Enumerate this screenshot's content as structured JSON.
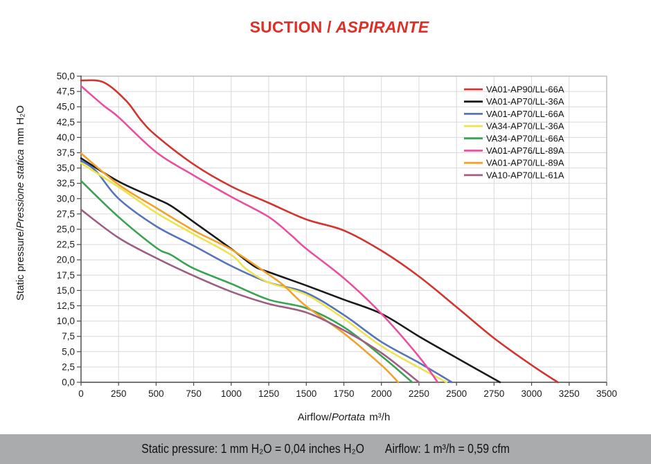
{
  "title": {
    "main": "SUCTION /",
    "italic": "ASPIRANTE",
    "color": "#e02f27"
  },
  "footer": {
    "pressure_note": "Static pressure: 1 mm H₂O = 0,04 inches H₂O",
    "airflow_note": "Airflow: 1 m³/h = 0,59 cfm",
    "bar_color": "#a9abad"
  },
  "chart_data": {
    "type": "line",
    "title": "SUCTION / ASPIRANTE",
    "xlabel_plain": "Airflow/",
    "xlabel_italic": "Portata",
    "xlabel_unit": "m³/h",
    "ylabel_plain": "Static pressure/",
    "ylabel_italic": "Pressione statica",
    "ylabel_unit": "mm H₂O",
    "xlim": [
      0,
      3500
    ],
    "ylim": [
      0,
      50
    ],
    "x_tick_step": 250,
    "y_tick_step": 2.5,
    "x_tick_labels": [
      "0",
      "250",
      "500",
      "750",
      "1000",
      "1250",
      "1500",
      "1750",
      "2000",
      "2250",
      "2500",
      "2750",
      "3000",
      "3250",
      "3500"
    ],
    "y_tick_labels": [
      "50,0",
      "47,5",
      "45,0",
      "42,5",
      "40,0",
      "37,5",
      "35,0",
      "32,5",
      "30,0",
      "27,5",
      "25,0",
      "22,5",
      "20,0",
      "17,5",
      "15,0",
      "12,5",
      "10,0",
      "7,5",
      "5,0",
      "2,5",
      "0,0"
    ],
    "grid": true,
    "gridline_color": "#d9d9d9",
    "border_color": "#aeaeae",
    "axis_color": "#4a4a4a",
    "legend_position": "top-right",
    "series": [
      {
        "name": "VA01-AP90/LL-66A",
        "color": "#d2342f",
        "points": [
          [
            0,
            49.3
          ],
          [
            150,
            49.0
          ],
          [
            300,
            46.0
          ],
          [
            400,
            42.8
          ],
          [
            500,
            40.3
          ],
          [
            750,
            35.6
          ],
          [
            1000,
            32.0
          ],
          [
            1250,
            29.3
          ],
          [
            1500,
            26.6
          ],
          [
            1750,
            24.8
          ],
          [
            2000,
            21.5
          ],
          [
            2250,
            17.3
          ],
          [
            2500,
            12.3
          ],
          [
            2750,
            7.2
          ],
          [
            3000,
            2.8
          ],
          [
            3175,
            0
          ]
        ]
      },
      {
        "name": "VA01-AP70/LL-36A",
        "color": "#1a1a1a",
        "points": [
          [
            0,
            36.6
          ],
          [
            250,
            32.8
          ],
          [
            500,
            30.0
          ],
          [
            600,
            28.8
          ],
          [
            750,
            26.2
          ],
          [
            1000,
            21.8
          ],
          [
            1150,
            19.0
          ],
          [
            1250,
            18.0
          ],
          [
            1500,
            15.8
          ],
          [
            1750,
            13.5
          ],
          [
            2000,
            11.2
          ],
          [
            2250,
            7.5
          ],
          [
            2500,
            4.0
          ],
          [
            2790,
            0
          ]
        ]
      },
      {
        "name": "VA01-AP70/LL-66A",
        "color": "#5574b9",
        "points": [
          [
            0,
            36.2
          ],
          [
            100,
            34.5
          ],
          [
            250,
            30.0
          ],
          [
            500,
            25.5
          ],
          [
            750,
            22.3
          ],
          [
            1000,
            19.0
          ],
          [
            1250,
            16.3
          ],
          [
            1500,
            14.6
          ],
          [
            1750,
            11.0
          ],
          [
            2000,
            6.6
          ],
          [
            2250,
            3.2
          ],
          [
            2470,
            0
          ]
        ]
      },
      {
        "name": "VA34-AP70/LL-36A",
        "color": "#ece34d",
        "points": [
          [
            0,
            35.8
          ],
          [
            250,
            31.9
          ],
          [
            500,
            27.7
          ],
          [
            750,
            24.2
          ],
          [
            1000,
            20.8
          ],
          [
            1100,
            18.5
          ],
          [
            1250,
            16.3
          ],
          [
            1500,
            14.3
          ],
          [
            1750,
            10.4
          ],
          [
            2000,
            5.9
          ],
          [
            2250,
            2.4
          ],
          [
            2434,
            0
          ]
        ]
      },
      {
        "name": "VA34-AP70/LL-66A",
        "color": "#3ba254",
        "points": [
          [
            0,
            32.9
          ],
          [
            250,
            27.0
          ],
          [
            500,
            22.0
          ],
          [
            600,
            20.8
          ],
          [
            750,
            18.6
          ],
          [
            1000,
            16.1
          ],
          [
            1250,
            13.5
          ],
          [
            1500,
            12.1
          ],
          [
            1750,
            9.0
          ],
          [
            2000,
            4.3
          ],
          [
            2205,
            0
          ]
        ]
      },
      {
        "name": "VA01-AP76/LL-89A",
        "color": "#ea4f9f",
        "points": [
          [
            0,
            48.4
          ],
          [
            150,
            45.2
          ],
          [
            250,
            43.3
          ],
          [
            500,
            37.6
          ],
          [
            750,
            33.8
          ],
          [
            1000,
            30.3
          ],
          [
            1250,
            27.0
          ],
          [
            1400,
            24.0
          ],
          [
            1500,
            21.8
          ],
          [
            1750,
            17.0
          ],
          [
            2000,
            11.2
          ],
          [
            2250,
            4.2
          ],
          [
            2375,
            0
          ]
        ]
      },
      {
        "name": "VA01-AP70/LL-89A",
        "color": "#f0a22d",
        "points": [
          [
            0,
            37.4
          ],
          [
            250,
            32.3
          ],
          [
            500,
            28.5
          ],
          [
            750,
            24.8
          ],
          [
            1000,
            21.7
          ],
          [
            1250,
            17.6
          ],
          [
            1350,
            15.8
          ],
          [
            1500,
            12.4
          ],
          [
            1750,
            8.0
          ],
          [
            2000,
            2.8
          ],
          [
            2112,
            0
          ]
        ]
      },
      {
        "name": "VA10-AP70/LL-61A",
        "color": "#9c5e82",
        "points": [
          [
            0,
            28.2
          ],
          [
            250,
            23.6
          ],
          [
            500,
            20.3
          ],
          [
            750,
            17.4
          ],
          [
            1000,
            14.8
          ],
          [
            1250,
            12.8
          ],
          [
            1500,
            11.4
          ],
          [
            1750,
            8.5
          ],
          [
            2000,
            4.8
          ],
          [
            2250,
            0
          ]
        ]
      }
    ]
  }
}
